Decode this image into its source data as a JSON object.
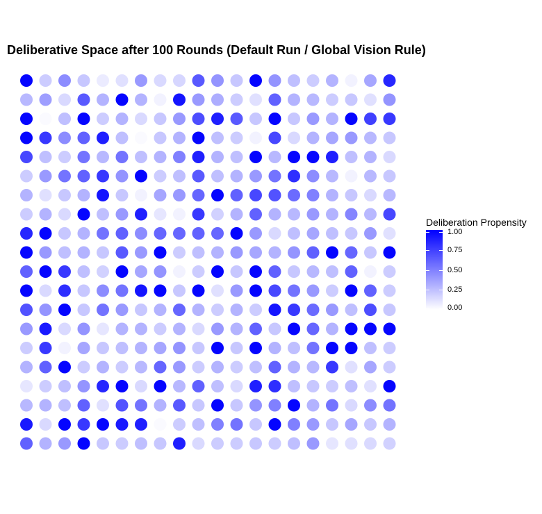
{
  "chart_data": {
    "type": "scatter",
    "title": "Deliberative Space after 100 Rounds (Default Run / Global Vision Rule)",
    "xlabel": "",
    "ylabel": "",
    "grid": false,
    "color_scale": {
      "name": "Deliberation Propensity",
      "low_color": "#ffffff",
      "high_color": "#0000ff",
      "limits": [
        0,
        1
      ],
      "ticks": [
        "1.00",
        "0.75",
        "0.50",
        "0.25",
        "0.00"
      ],
      "tick_values": [
        1.0,
        0.75,
        0.5,
        0.25,
        0.0
      ]
    },
    "legend_position": "right",
    "rows": 20,
    "cols": 20,
    "values": [
      [
        0.98,
        0.2,
        0.45,
        0.22,
        0.08,
        0.12,
        0.4,
        0.15,
        0.16,
        0.65,
        0.42,
        0.22,
        0.98,
        0.42,
        0.25,
        0.2,
        0.3,
        0.05,
        0.35,
        0.85
      ],
      [
        0.28,
        0.38,
        0.15,
        0.65,
        0.3,
        0.98,
        0.3,
        0.05,
        0.92,
        0.4,
        0.32,
        0.2,
        0.12,
        0.62,
        0.3,
        0.28,
        0.2,
        0.22,
        0.12,
        0.42
      ],
      [
        0.98,
        0.02,
        0.25,
        0.98,
        0.2,
        0.3,
        0.15,
        0.22,
        0.4,
        0.7,
        0.88,
        0.65,
        0.22,
        0.98,
        0.22,
        0.4,
        0.3,
        0.98,
        0.75,
        0.78
      ],
      [
        0.98,
        0.78,
        0.45,
        0.62,
        0.88,
        0.25,
        0.02,
        0.22,
        0.3,
        0.98,
        0.25,
        0.2,
        0.05,
        0.72,
        0.15,
        0.3,
        0.35,
        0.4,
        0.28,
        0.22
      ],
      [
        0.72,
        0.25,
        0.2,
        0.55,
        0.28,
        0.55,
        0.25,
        0.3,
        0.5,
        0.88,
        0.3,
        0.25,
        0.98,
        0.28,
        0.98,
        0.98,
        0.88,
        0.25,
        0.3,
        0.15
      ],
      [
        0.2,
        0.4,
        0.55,
        0.62,
        0.78,
        0.42,
        0.98,
        0.2,
        0.25,
        0.65,
        0.25,
        0.3,
        0.4,
        0.55,
        0.82,
        0.45,
        0.28,
        0.05,
        0.28,
        0.22
      ],
      [
        0.3,
        0.12,
        0.22,
        0.3,
        0.92,
        0.22,
        0.05,
        0.35,
        0.4,
        0.6,
        0.98,
        0.62,
        0.72,
        0.68,
        0.58,
        0.5,
        0.3,
        0.22,
        0.15,
        0.28
      ],
      [
        0.2,
        0.3,
        0.15,
        0.98,
        0.25,
        0.4,
        0.88,
        0.1,
        0.05,
        0.78,
        0.18,
        0.3,
        0.62,
        0.3,
        0.28,
        0.4,
        0.3,
        0.48,
        0.28,
        0.72
      ],
      [
        0.85,
        0.98,
        0.22,
        0.3,
        0.55,
        0.62,
        0.45,
        0.6,
        0.6,
        0.62,
        0.6,
        0.98,
        0.4,
        0.15,
        0.25,
        0.35,
        0.25,
        0.22,
        0.4,
        0.12
      ],
      [
        0.98,
        0.4,
        0.25,
        0.3,
        0.22,
        0.65,
        0.4,
        0.98,
        0.2,
        0.25,
        0.3,
        0.4,
        0.35,
        0.3,
        0.42,
        0.62,
        0.98,
        0.6,
        0.22,
        0.98
      ],
      [
        0.62,
        0.98,
        0.78,
        0.25,
        0.18,
        0.98,
        0.35,
        0.42,
        0.05,
        0.2,
        0.98,
        0.22,
        0.98,
        0.62,
        0.22,
        0.28,
        0.25,
        0.62,
        0.05,
        0.2
      ],
      [
        0.98,
        0.15,
        0.82,
        0.22,
        0.45,
        0.55,
        0.92,
        0.98,
        0.22,
        0.98,
        0.12,
        0.4,
        0.98,
        0.72,
        0.55,
        0.4,
        0.2,
        0.98,
        0.62,
        0.2
      ],
      [
        0.68,
        0.42,
        0.98,
        0.22,
        0.55,
        0.4,
        0.22,
        0.3,
        0.6,
        0.3,
        0.2,
        0.3,
        0.2,
        0.92,
        0.78,
        0.58,
        0.4,
        0.25,
        0.7,
        0.22
      ],
      [
        0.4,
        0.9,
        0.15,
        0.42,
        0.1,
        0.3,
        0.3,
        0.2,
        0.3,
        0.15,
        0.4,
        0.3,
        0.62,
        0.22,
        0.98,
        0.6,
        0.3,
        0.98,
        0.98,
        0.98
      ],
      [
        0.2,
        0.78,
        0.05,
        0.35,
        0.22,
        0.25,
        0.3,
        0.35,
        0.42,
        0.22,
        0.98,
        0.22,
        0.98,
        0.3,
        0.25,
        0.55,
        0.98,
        0.98,
        0.25,
        0.2
      ],
      [
        0.3,
        0.62,
        0.98,
        0.2,
        0.3,
        0.2,
        0.28,
        0.6,
        0.4,
        0.2,
        0.3,
        0.2,
        0.25,
        0.62,
        0.3,
        0.28,
        0.78,
        0.12,
        0.35,
        0.2
      ],
      [
        0.1,
        0.2,
        0.25,
        0.42,
        0.85,
        0.98,
        0.15,
        0.98,
        0.28,
        0.62,
        0.25,
        0.15,
        0.88,
        0.82,
        0.25,
        0.22,
        0.2,
        0.25,
        0.12,
        0.98
      ],
      [
        0.28,
        0.3,
        0.25,
        0.62,
        0.12,
        0.68,
        0.55,
        0.3,
        0.65,
        0.22,
        0.98,
        0.22,
        0.42,
        0.5,
        0.98,
        0.3,
        0.55,
        0.15,
        0.45,
        0.55
      ],
      [
        0.9,
        0.15,
        0.98,
        0.78,
        0.98,
        0.9,
        0.88,
        0.02,
        0.2,
        0.25,
        0.5,
        0.55,
        0.22,
        0.98,
        0.5,
        0.4,
        0.22,
        0.35,
        0.22,
        0.3
      ],
      [
        0.62,
        0.3,
        0.4,
        0.98,
        0.22,
        0.2,
        0.25,
        0.22,
        0.88,
        0.15,
        0.2,
        0.2,
        0.22,
        0.2,
        0.25,
        0.4,
        0.1,
        0.12,
        0.15,
        0.18
      ]
    ]
  }
}
